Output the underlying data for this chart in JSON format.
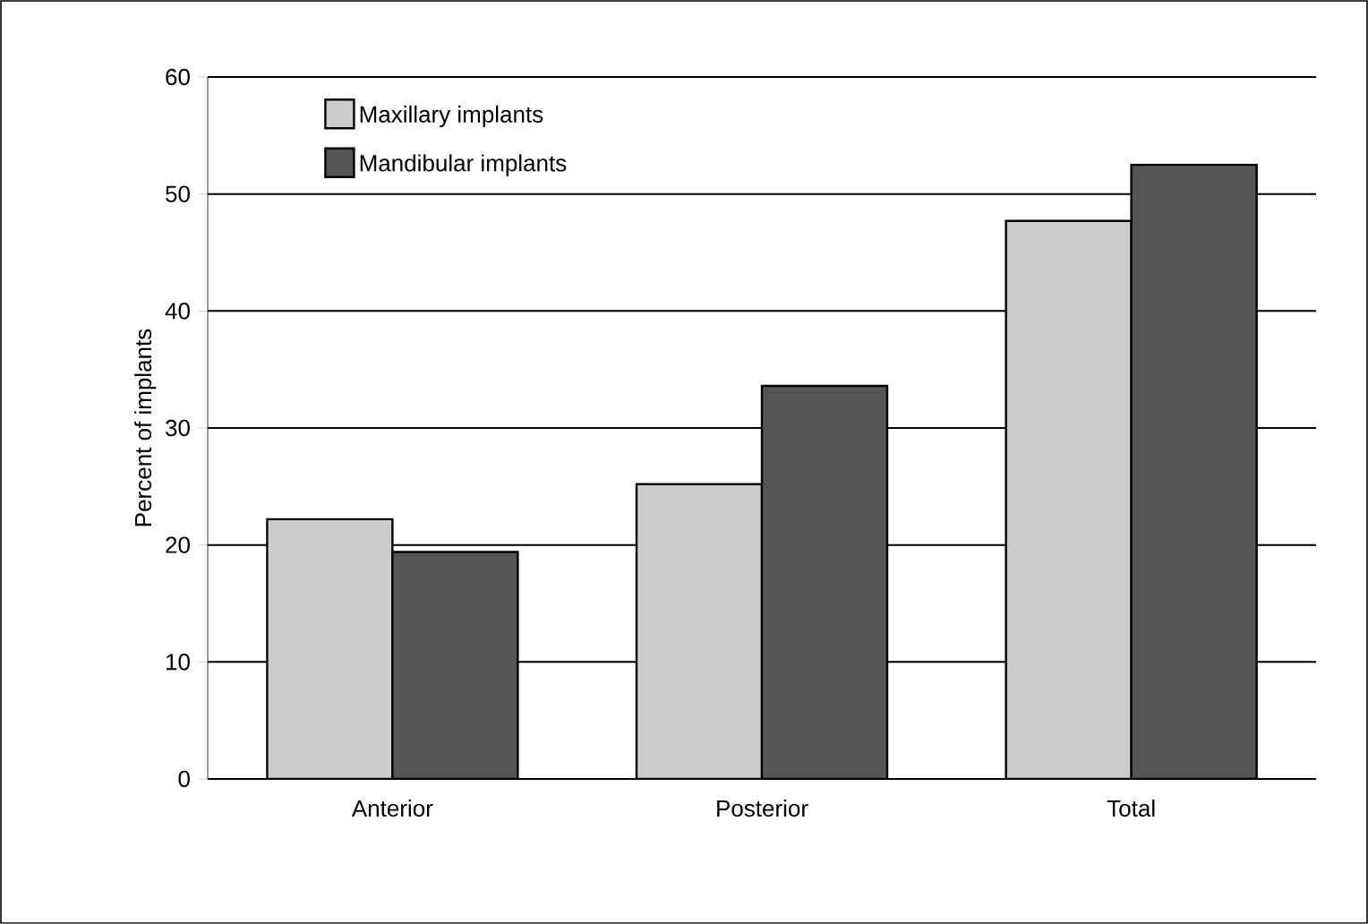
{
  "chart_data": {
    "type": "bar",
    "ylabel": "Percent of implants",
    "categories": [
      "Anterior",
      "Posterior",
      "Total"
    ],
    "series": [
      {
        "name": "Maxillary implants",
        "color": "#cccccc",
        "values": [
          22.2,
          25.2,
          47.7
        ]
      },
      {
        "name": "Mandibular implants",
        "color": "#555555",
        "values": [
          19.4,
          33.6,
          52.5
        ]
      }
    ],
    "ylim": [
      0,
      60
    ],
    "yticks": [
      0,
      10,
      20,
      30,
      40,
      50,
      60
    ],
    "grid": "y",
    "legend": "top left"
  }
}
